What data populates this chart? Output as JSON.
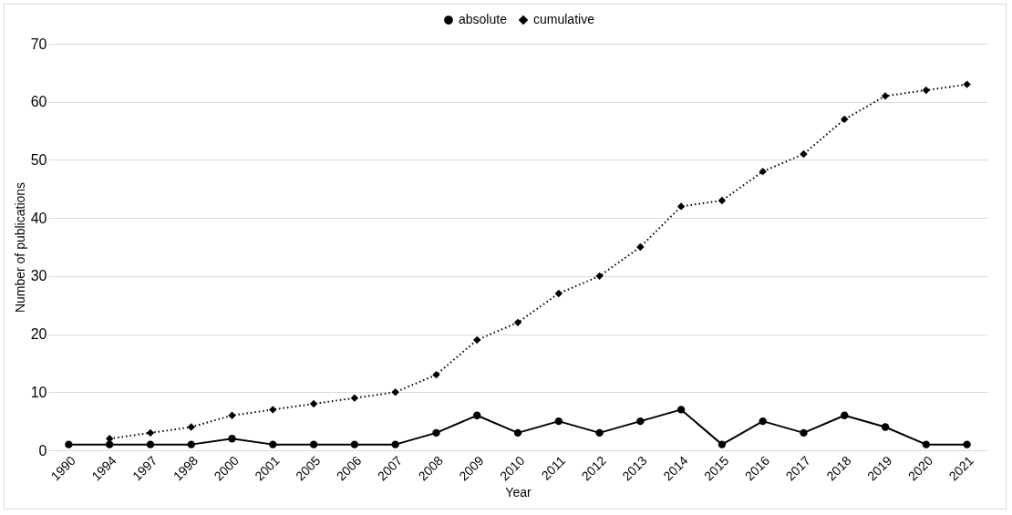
{
  "chart_data": {
    "type": "line",
    "xlabel": "Year",
    "ylabel": "Number of publications",
    "categories": [
      "1990",
      "1994",
      "1997",
      "1998",
      "2000",
      "2001",
      "2005",
      "2006",
      "2007",
      "2008",
      "2009",
      "2010",
      "2011",
      "2012",
      "2013",
      "2014",
      "2015",
      "2016",
      "2017",
      "2018",
      "2019",
      "2020",
      "2021"
    ],
    "series": [
      {
        "name": "absolute",
        "color": "#000000",
        "marker": "circle",
        "line_style": "solid",
        "values": [
          1,
          1,
          1,
          1,
          2,
          1,
          1,
          1,
          1,
          3,
          6,
          3,
          5,
          3,
          5,
          7,
          1,
          5,
          3,
          6,
          4,
          1,
          1
        ]
      },
      {
        "name": "cumulative",
        "color": "#000000",
        "marker": "diamond",
        "line_style": "dotted",
        "values": [
          null,
          2,
          3,
          4,
          6,
          7,
          8,
          9,
          10,
          13,
          19,
          22,
          27,
          30,
          35,
          42,
          43,
          48,
          51,
          57,
          61,
          62,
          63
        ]
      }
    ],
    "ylim": [
      0,
      70
    ],
    "yticks": [
      0,
      10,
      20,
      30,
      40,
      50,
      60,
      70
    ],
    "grid": "y",
    "legend": "top"
  }
}
